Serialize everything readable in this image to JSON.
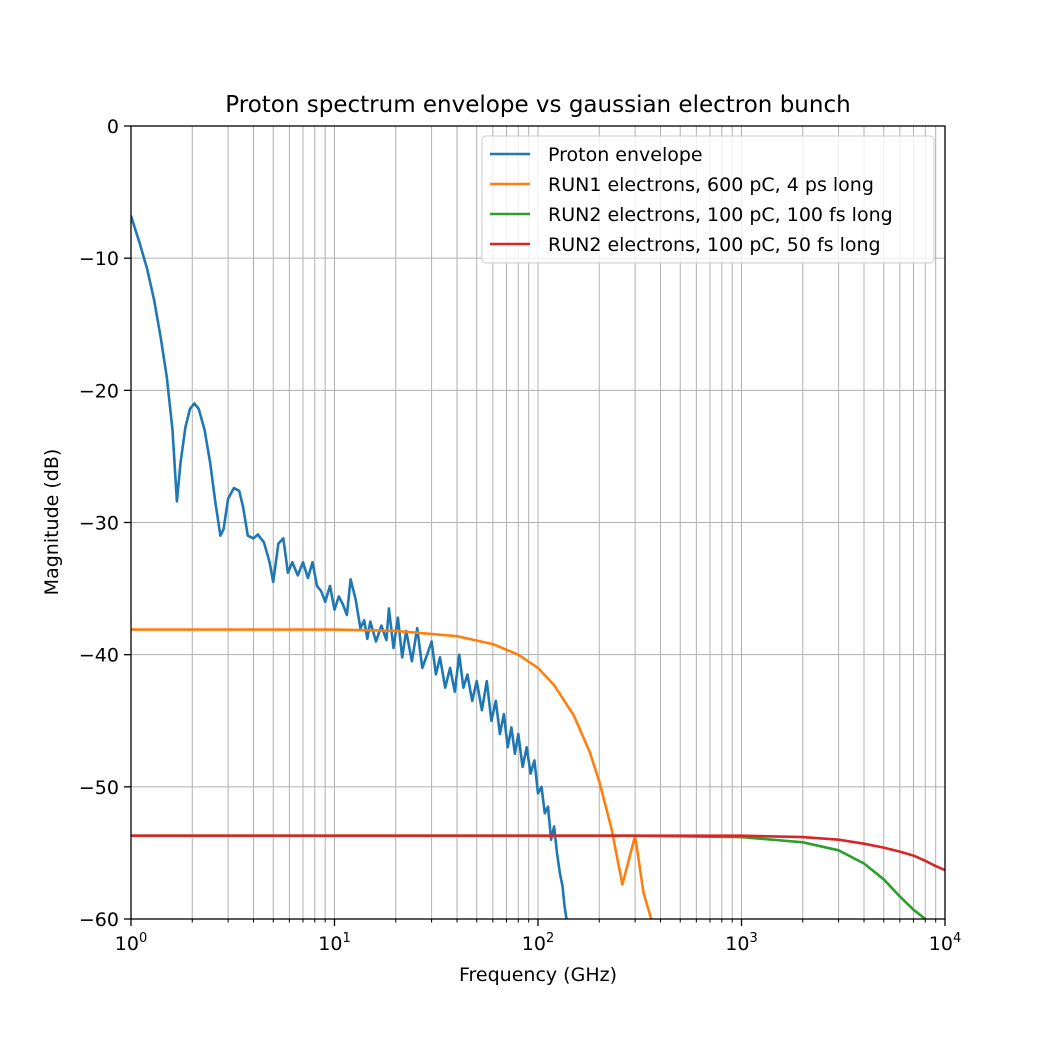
{
  "chart_data": {
    "type": "line",
    "title": "Proton spectrum envelope vs gaussian electron bunch",
    "xlabel": "Frequency (GHz)",
    "ylabel": "Magnitude (dB)",
    "xscale": "log",
    "xlim": [
      1,
      10000
    ],
    "ylim": [
      -60,
      0
    ],
    "grid": "major and minor",
    "legend_position": "top-right",
    "x_ticks": [
      {
        "value": 1,
        "mantissa": "10",
        "exp": "0"
      },
      {
        "value": 10,
        "mantissa": "10",
        "exp": "1"
      },
      {
        "value": 100,
        "mantissa": "10",
        "exp": "2"
      },
      {
        "value": 1000,
        "mantissa": "10",
        "exp": "3"
      },
      {
        "value": 10000,
        "mantissa": "10",
        "exp": "4"
      }
    ],
    "y_ticks": [
      {
        "value": 0,
        "label": "0"
      },
      {
        "value": -10,
        "label": "−10"
      },
      {
        "value": -20,
        "label": "−20"
      },
      {
        "value": -30,
        "label": "−30"
      },
      {
        "value": -40,
        "label": "−40"
      },
      {
        "value": -50,
        "label": "−50"
      },
      {
        "value": -60,
        "label": "−60"
      }
    ],
    "series": [
      {
        "name": "Proton envelope",
        "color": "#1f77b4",
        "x": [
          1.0,
          1.1,
          1.2,
          1.3,
          1.4,
          1.5,
          1.6,
          1.68,
          1.75,
          1.85,
          1.95,
          2.05,
          2.15,
          2.3,
          2.45,
          2.6,
          2.75,
          2.85,
          3.0,
          3.2,
          3.4,
          3.55,
          3.75,
          4.0,
          4.2,
          4.5,
          4.8,
          5.0,
          5.3,
          5.6,
          5.9,
          6.2,
          6.6,
          7.0,
          7.4,
          7.8,
          8.2,
          8.6,
          9.0,
          9.5,
          10.0,
          10.5,
          11.0,
          11.5,
          12.0,
          12.7,
          13.4,
          14.0,
          14.5,
          15.0,
          16.0,
          17.0,
          18.0,
          18.5,
          19.5,
          20.5,
          21.5,
          22.5,
          24.0,
          25.5,
          27.0,
          28.5,
          30.0,
          31.5,
          33.0,
          35.0,
          37.0,
          39.0,
          41.0,
          43.0,
          45.0,
          47.5,
          50.0,
          53.0,
          56.0,
          59.0,
          62.0,
          65.0,
          68.0,
          71.0,
          74.0,
          77.0,
          80.0,
          84.0,
          88.0,
          92.0,
          96.0,
          100.0,
          104.0,
          108.0,
          112.0,
          116.0,
          120.0,
          124.0,
          128.0,
          132.0,
          135.0,
          138.0
        ],
        "y": [
          -6.8,
          -8.8,
          -10.8,
          -13.2,
          -16.0,
          -19.0,
          -23.0,
          -28.4,
          -25.5,
          -22.8,
          -21.4,
          -21.0,
          -21.4,
          -23.0,
          -25.5,
          -28.5,
          -31.0,
          -30.5,
          -28.2,
          -27.4,
          -27.6,
          -28.8,
          -31.0,
          -31.2,
          -30.9,
          -31.5,
          -33.0,
          -34.5,
          -31.6,
          -31.2,
          -33.8,
          -33.0,
          -34.0,
          -33.0,
          -34.2,
          -33.0,
          -34.8,
          -35.2,
          -36.0,
          -34.8,
          -36.6,
          -35.6,
          -36.2,
          -37.0,
          -34.3,
          -35.8,
          -38.0,
          -37.4,
          -38.8,
          -37.5,
          -39.0,
          -37.8,
          -38.9,
          -36.5,
          -39.5,
          -37.2,
          -40.2,
          -38.2,
          -40.5,
          -38.0,
          -41.0,
          -40.0,
          -39.0,
          -41.5,
          -40.2,
          -42.5,
          -41.0,
          -42.8,
          -40.0,
          -42.5,
          -41.5,
          -43.5,
          -42.0,
          -44.2,
          -42.0,
          -45.0,
          -43.5,
          -46.0,
          -44.5,
          -47.0,
          -45.5,
          -47.5,
          -46.0,
          -48.5,
          -47.0,
          -49.0,
          -48.0,
          -50.5,
          -50.0,
          -52.0,
          -51.5,
          -54.0,
          -53.0,
          -55.0,
          -56.5,
          -57.5,
          -59.0,
          -60.0
        ]
      },
      {
        "name": "RUN1 electrons, 600 pC, 4 ps long",
        "color": "#ff7f0e",
        "x": [
          1,
          2,
          5,
          10,
          20,
          40,
          60,
          80,
          100,
          120,
          150,
          180,
          200,
          230,
          260,
          300,
          330,
          360
        ],
        "y": [
          -38.1,
          -38.1,
          -38.1,
          -38.1,
          -38.2,
          -38.6,
          -39.2,
          -40.0,
          -41.0,
          -42.3,
          -44.6,
          -47.4,
          -49.6,
          -53.2,
          -57.4,
          -53.7,
          -58.0,
          -60.0
        ]
      },
      {
        "name": "RUN2 electrons, 100 pC, 100 fs long",
        "color": "#2ca02c",
        "x": [
          1,
          10,
          100,
          300,
          1000,
          2000,
          3000,
          4000,
          5000,
          6000,
          7000,
          8000
        ],
        "y": [
          -53.7,
          -53.7,
          -53.7,
          -53.7,
          -53.8,
          -54.2,
          -54.8,
          -55.8,
          -57.0,
          -58.3,
          -59.3,
          -60.0
        ]
      },
      {
        "name": "RUN2 electrons, 100 pC, 50 fs long",
        "color": "#d62728",
        "x": [
          1,
          10,
          100,
          1000,
          2000,
          3000,
          4000,
          5000,
          6000,
          7000,
          8000,
          9000,
          10000
        ],
        "y": [
          -53.7,
          -53.7,
          -53.7,
          -53.7,
          -53.8,
          -54.0,
          -54.3,
          -54.6,
          -54.9,
          -55.2,
          -55.6,
          -56.0,
          -56.3
        ]
      }
    ]
  }
}
